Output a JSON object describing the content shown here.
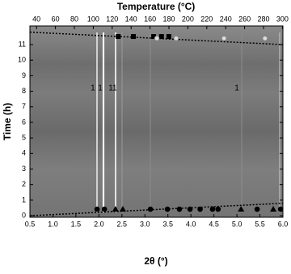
{
  "chart_data": {
    "type": "scatter",
    "xlabel": "2θ (°)",
    "x2label": "Temperature (°C)",
    "ylabel": "Time (h)",
    "xlim": [
      0.5,
      6.0
    ],
    "xticks": [
      0.5,
      {
        "value": 1,
        "label": "1.0"
      },
      1.5,
      {
        "value": 2,
        "label": "2.0"
      },
      2.5,
      {
        "value": 3,
        "label": "3.0"
      },
      3.5,
      {
        "value": 4,
        "label": "4.0"
      },
      4.5,
      {
        "value": 5,
        "label": "5.0"
      },
      5.5,
      {
        "value": 6,
        "label": "6.0"
      }
    ],
    "x2lim": [
      33,
      300.5
    ],
    "x2ticks": [
      40,
      60,
      80,
      100,
      120,
      140,
      160,
      180,
      200,
      220,
      240,
      260,
      280,
      300
    ],
    "ylim": [
      -0.1,
      12.2
    ],
    "yticks": [
      0,
      1,
      2,
      3,
      4,
      5,
      6,
      7,
      8,
      9,
      10,
      11
    ],
    "series": [
      {
        "marker": "circle",
        "color": "#000000",
        "x": [
          1.96,
          2.12,
          3.12,
          3.49,
          3.75,
          3.98,
          4.2,
          4.47,
          4.59,
          5.44,
          5.95
        ],
        "values": [
          0.42,
          0.42,
          0.42,
          0.42,
          0.42,
          0.42,
          0.42,
          0.42,
          0.42,
          0.42,
          0.42
        ]
      },
      {
        "marker": "triangle",
        "color": "#000000",
        "x": [
          2.36,
          2.52,
          5.09,
          5.79
        ],
        "values": [
          0.42,
          0.42,
          0.42,
          0.42
        ]
      },
      {
        "marker": "square",
        "color": "#000000",
        "x": [
          2.42,
          2.75,
          3.19,
          3.36,
          3.52
        ],
        "values": [
          11.52,
          11.52,
          11.52,
          11.52,
          11.52
        ]
      },
      {
        "marker": "open-circle",
        "color": "#dddddd",
        "x": [
          3.26,
          3.68,
          4.72,
          5.61
        ],
        "values": [
          11.4,
          11.4,
          11.4,
          11.4
        ]
      }
    ],
    "lines": [
      {
        "color": "#000000",
        "x": [
          0.5,
          6.0
        ],
        "values": [
          11.8,
          11.0
        ]
      },
      {
        "color": "#000000",
        "x": [
          0.5,
          6.0
        ],
        "values": [
          0.0,
          0.8
        ]
      }
    ],
    "annotations": [
      {
        "text": "1",
        "x": 1.87,
        "y": 8.2
      },
      {
        "text": "1",
        "x": 2.03,
        "y": 8.2
      },
      {
        "text": "11",
        "x": 2.3,
        "y": 8.2
      },
      {
        "text": "1",
        "x": 5.0,
        "y": 8.2
      }
    ]
  }
}
